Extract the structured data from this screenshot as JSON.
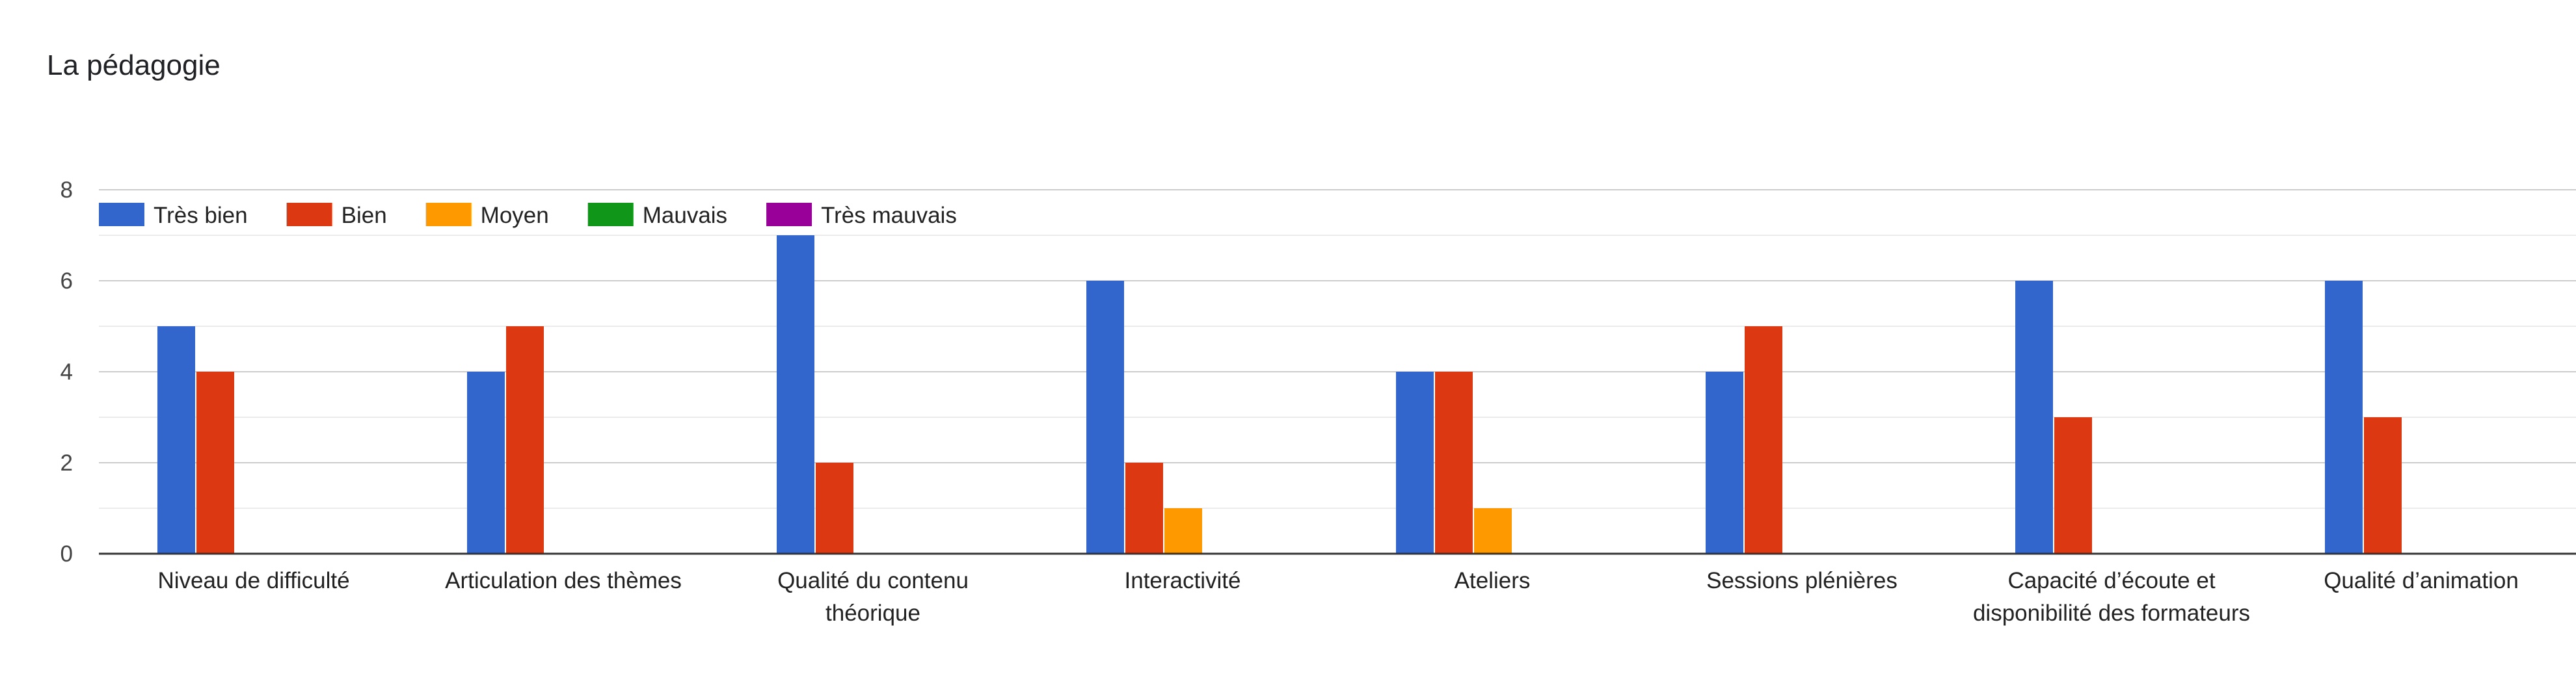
{
  "chart_data": {
    "type": "bar",
    "title": "La pédagogie",
    "xlabel": "",
    "ylabel": "",
    "ylim": [
      0,
      8
    ],
    "yticks": [
      0,
      2,
      4,
      6,
      8
    ],
    "grid": true,
    "legend_position": "top-left",
    "categories": [
      [
        "Niveau de difficulté"
      ],
      [
        "Articulation des thèmes"
      ],
      [
        "Qualité du contenu",
        "théorique"
      ],
      [
        "Interactivité"
      ],
      [
        "Ateliers"
      ],
      [
        "Sessions plénières"
      ],
      [
        "Capacité d’écoute et",
        "disponibilité des formateurs"
      ],
      [
        "Qualité d’animation"
      ]
    ],
    "series": [
      {
        "name": "Très bien",
        "color": "#3366cc",
        "values": [
          5,
          4,
          7,
          6,
          4,
          4,
          6,
          6
        ]
      },
      {
        "name": "Bien",
        "color": "#dc3912",
        "values": [
          4,
          5,
          2,
          2,
          4,
          5,
          3,
          3
        ]
      },
      {
        "name": "Moyen",
        "color": "#ff9900",
        "values": [
          0,
          0,
          0,
          1,
          1,
          0,
          0,
          0
        ]
      },
      {
        "name": "Mauvais",
        "color": "#109618",
        "values": [
          0,
          0,
          0,
          0,
          0,
          0,
          0,
          0
        ]
      },
      {
        "name": "Très mauvais",
        "color": "#990099",
        "values": [
          0,
          0,
          0,
          0,
          0,
          0,
          0,
          0
        ]
      }
    ]
  }
}
